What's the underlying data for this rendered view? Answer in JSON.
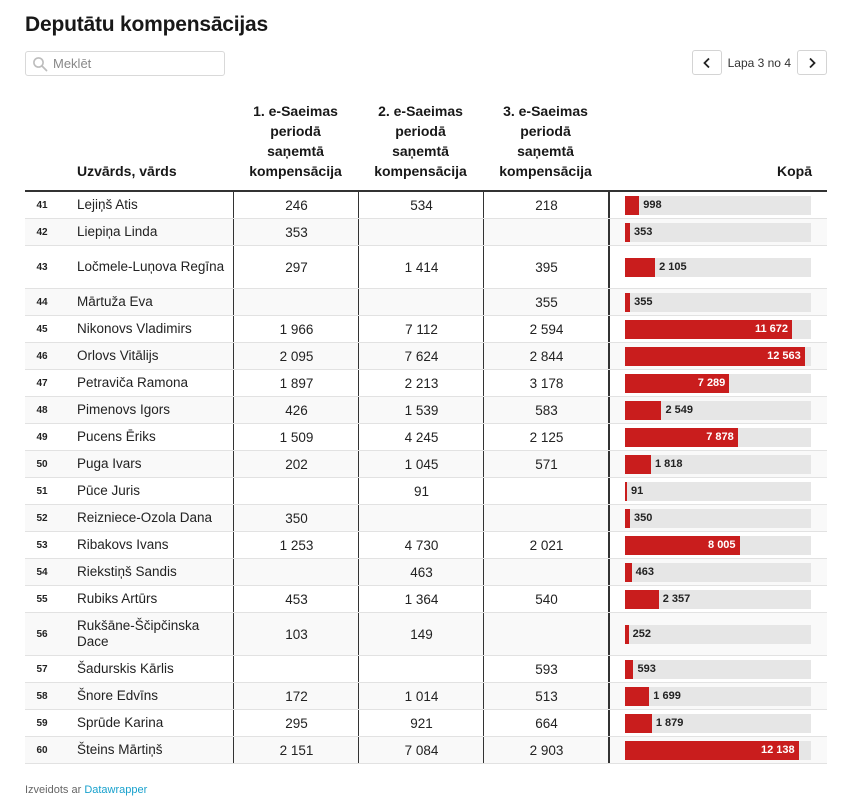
{
  "title": "Deputātu kompensācijas",
  "search": {
    "placeholder": "Meklēt",
    "value": ""
  },
  "pagination": {
    "label": "Lapa 3 no 4"
  },
  "columns": {
    "name": "Uzvārds, vārds",
    "period1": "1. e-Saeimas periodā saņemtā kompensācija",
    "period2": "2. e-Saeimas periodā saņemtā kompensācija",
    "period3": "3. e-Saeimas periodā saņemtā kompensācija",
    "total": "Kopā"
  },
  "bar_max": 13000,
  "colors": {
    "bar": "#c91d1d",
    "bar_track": "#e6e6e6",
    "link": "#18a1cd"
  },
  "rows": [
    {
      "rank": "41",
      "name": "Lejiņš Atis",
      "p1": "246",
      "p2": "534",
      "p3": "218",
      "total_label": "998",
      "total": 998
    },
    {
      "rank": "42",
      "name": "Liepiņa Linda",
      "p1": "353",
      "p2": "",
      "p3": "",
      "total_label": "353",
      "total": 353
    },
    {
      "rank": "43",
      "name": "Ločmele-Luņova Regīna",
      "p1": "297",
      "p2": "1 414",
      "p3": "395",
      "total_label": "2 105",
      "total": 2105
    },
    {
      "rank": "44",
      "name": "Mārtuža Eva",
      "p1": "",
      "p2": "",
      "p3": "355",
      "total_label": "355",
      "total": 355
    },
    {
      "rank": "45",
      "name": "Nikonovs Vladimirs",
      "p1": "1 966",
      "p2": "7 112",
      "p3": "2 594",
      "total_label": "11 672",
      "total": 11672
    },
    {
      "rank": "46",
      "name": "Orlovs Vitālijs",
      "p1": "2 095",
      "p2": "7 624",
      "p3": "2 844",
      "total_label": "12 563",
      "total": 12563
    },
    {
      "rank": "47",
      "name": "Petraviča Ramona",
      "p1": "1 897",
      "p2": "2 213",
      "p3": "3 178",
      "total_label": "7 289",
      "total": 7289
    },
    {
      "rank": "48",
      "name": "Pimenovs Igors",
      "p1": "426",
      "p2": "1 539",
      "p3": "583",
      "total_label": "2 549",
      "total": 2549
    },
    {
      "rank": "49",
      "name": "Pucens Ēriks",
      "p1": "1 509",
      "p2": "4 245",
      "p3": "2 125",
      "total_label": "7 878",
      "total": 7878
    },
    {
      "rank": "50",
      "name": "Puga Ivars",
      "p1": "202",
      "p2": "1 045",
      "p3": "571",
      "total_label": "1 818",
      "total": 1818
    },
    {
      "rank": "51",
      "name": "Pūce Juris",
      "p1": "",
      "p2": "91",
      "p3": "",
      "total_label": "91",
      "total": 91
    },
    {
      "rank": "52",
      "name": "Reizniece-Ozola Dana",
      "p1": "350",
      "p2": "",
      "p3": "",
      "total_label": "350",
      "total": 350
    },
    {
      "rank": "53",
      "name": "Ribakovs Ivans",
      "p1": "1 253",
      "p2": "4 730",
      "p3": "2 021",
      "total_label": "8 005",
      "total": 8005
    },
    {
      "rank": "54",
      "name": "Riekstiņš Sandis",
      "p1": "",
      "p2": "463",
      "p3": "",
      "total_label": "463",
      "total": 463
    },
    {
      "rank": "55",
      "name": "Rubiks Artūrs",
      "p1": "453",
      "p2": "1 364",
      "p3": "540",
      "total_label": "2 357",
      "total": 2357
    },
    {
      "rank": "56",
      "name": "Rukšāne-Ščipčinska Dace",
      "p1": "103",
      "p2": "149",
      "p3": "",
      "total_label": "252",
      "total": 252
    },
    {
      "rank": "57",
      "name": "Šadurskis Kārlis",
      "p1": "",
      "p2": "",
      "p3": "593",
      "total_label": "593",
      "total": 593
    },
    {
      "rank": "58",
      "name": "Šnore Edvīns",
      "p1": "172",
      "p2": "1 014",
      "p3": "513",
      "total_label": "1 699",
      "total": 1699
    },
    {
      "rank": "59",
      "name": "Sprūde Karina",
      "p1": "295",
      "p2": "921",
      "p3": "664",
      "total_label": "1 879",
      "total": 1879
    },
    {
      "rank": "60",
      "name": "Šteins Mārtiņš",
      "p1": "2 151",
      "p2": "7 084",
      "p3": "2 903",
      "total_label": "12 138",
      "total": 12138
    }
  ],
  "footer": {
    "prefix": "Izveidots ar",
    "link": "Datawrapper"
  }
}
